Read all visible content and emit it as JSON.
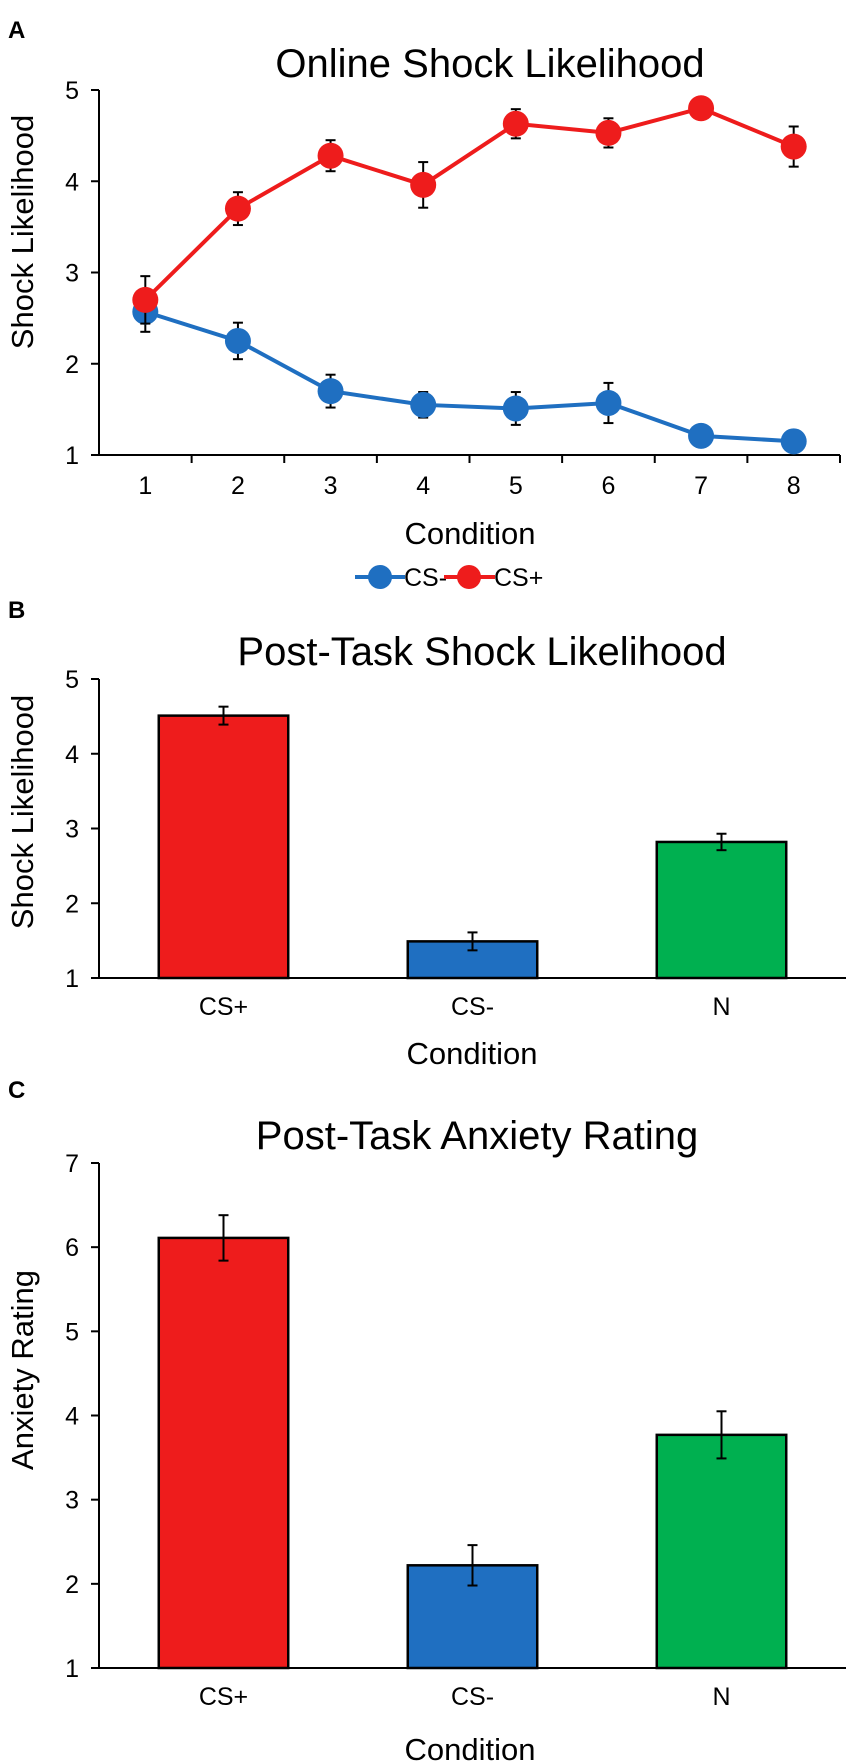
{
  "chart_data": [
    {
      "panel": "A",
      "type": "line",
      "title": "Online Shock Likelihood",
      "xlabel": "Condition",
      "ylabel": "Shock Likelihood",
      "x": [
        "1",
        "2",
        "3",
        "4",
        "5",
        "6",
        "7",
        "8"
      ],
      "ylim": [
        1,
        5
      ],
      "yticks": [
        "1",
        "2",
        "3",
        "4",
        "5"
      ],
      "grid": false,
      "legend_position": "bottom",
      "series": [
        {
          "name": "CS-",
          "color": "#1f6fc1",
          "values": [
            2.57,
            2.25,
            1.7,
            1.55,
            1.51,
            1.57,
            1.21,
            1.15
          ],
          "errors": [
            0.22,
            0.2,
            0.18,
            0.14,
            0.18,
            0.22,
            0.1,
            0.07
          ]
        },
        {
          "name": "CS+",
          "color": "#ee1c1c",
          "values": [
            2.7,
            3.7,
            4.28,
            3.96,
            4.63,
            4.53,
            4.8,
            4.38
          ],
          "errors": [
            0.26,
            0.18,
            0.17,
            0.25,
            0.16,
            0.16,
            0.09,
            0.22
          ]
        }
      ]
    },
    {
      "panel": "B",
      "type": "bar",
      "title": "Post-Task Shock Likelihood",
      "xlabel": "Condition",
      "ylabel": "Shock Likelihood",
      "categories": [
        "CS+",
        "CS-",
        "N"
      ],
      "values": [
        4.51,
        1.49,
        2.82
      ],
      "errors": [
        0.12,
        0.12,
        0.11
      ],
      "colors": [
        "#ee1c1c",
        "#1f6fc1",
        "#00b050"
      ],
      "ylim": [
        1,
        5
      ],
      "yticks": [
        "1",
        "2",
        "3",
        "4",
        "5"
      ],
      "grid": false
    },
    {
      "panel": "C",
      "type": "bar",
      "title": "Post-Task Anxiety Rating",
      "xlabel": "Condition",
      "ylabel": "Anxiety Rating",
      "categories": [
        "CS+",
        "CS-",
        "N"
      ],
      "values": [
        6.11,
        2.22,
        3.77
      ],
      "errors": [
        0.27,
        0.24,
        0.28
      ],
      "colors": [
        "#ee1c1c",
        "#1f6fc1",
        "#00b050"
      ],
      "ylim": [
        1,
        7
      ],
      "yticks": [
        "1",
        "2",
        "3",
        "4",
        "5",
        "6",
        "7"
      ],
      "grid": false
    }
  ]
}
